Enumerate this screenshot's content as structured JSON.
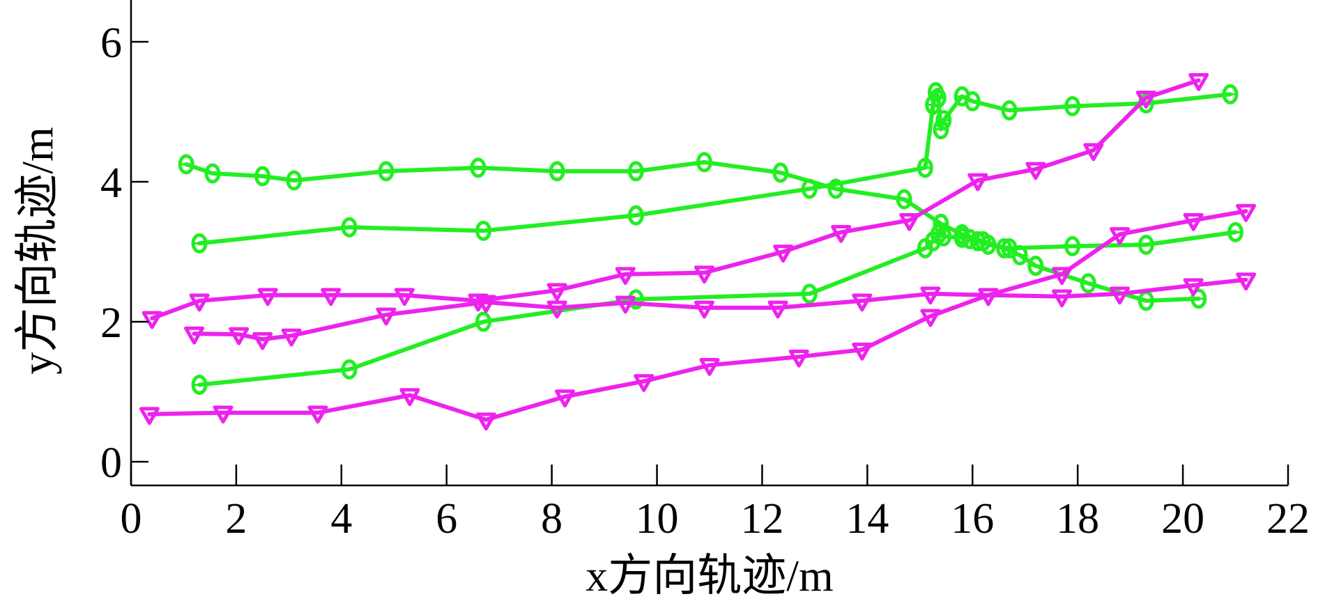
{
  "chart_data": {
    "type": "line",
    "title": "",
    "xlabel": "x方向轨迹/m",
    "ylabel": "y方向轨迹/m",
    "xlim": [
      0,
      22
    ],
    "ylim": [
      -0.3,
      6.6
    ],
    "xticks": [
      0,
      2,
      4,
      6,
      8,
      10,
      12,
      14,
      16,
      18,
      20,
      22
    ],
    "yticks": [
      0,
      2,
      4,
      6
    ],
    "grid": false,
    "colors": {
      "green": "#22ee22",
      "magenta": "#ee22ee"
    },
    "series": [
      {
        "color": "green",
        "marker": "circle",
        "x": [
          1.05,
          1.55,
          2.5,
          3.1,
          4.85,
          6.6,
          8.1,
          9.6,
          10.9,
          12.35,
          13.4,
          14.7,
          15.4,
          15.8,
          16.2,
          16.6,
          16.9,
          17.2,
          18.2,
          19.3,
          20.3
        ],
        "y": [
          4.25,
          4.12,
          4.08,
          4.02,
          4.15,
          4.2,
          4.15,
          4.15,
          4.28,
          4.13,
          3.9,
          3.75,
          3.4,
          3.25,
          3.15,
          3.05,
          2.95,
          2.8,
          2.55,
          2.3,
          2.33
        ]
      },
      {
        "color": "green",
        "marker": "circle",
        "x": [
          1.3,
          4.15,
          6.7,
          9.6,
          12.9,
          15.1,
          15.25,
          15.3,
          15.35,
          15.4,
          15.45,
          15.8,
          16.0,
          16.7,
          17.9,
          19.3,
          20.9
        ],
        "y": [
          3.12,
          3.35,
          3.3,
          3.52,
          3.9,
          4.2,
          5.1,
          5.28,
          5.2,
          4.75,
          4.88,
          5.22,
          5.15,
          5.02,
          5.08,
          5.12,
          5.25
        ]
      },
      {
        "color": "green",
        "marker": "circle",
        "x": [
          1.3,
          4.15,
          6.7,
          9.6,
          12.9,
          15.1,
          15.25,
          15.35,
          15.45,
          15.8,
          15.95,
          16.1,
          16.3,
          16.7,
          17.9,
          19.3,
          21.0
        ],
        "y": [
          1.1,
          1.32,
          2.0,
          2.32,
          2.4,
          3.05,
          3.15,
          3.25,
          3.22,
          3.2,
          3.18,
          3.15,
          3.1,
          3.05,
          3.08,
          3.1,
          3.28
        ]
      },
      {
        "color": "magenta",
        "marker": "triangle-down",
        "x": [
          0.4,
          1.3,
          2.6,
          3.8,
          5.2,
          6.6,
          8.1,
          9.4,
          10.9,
          12.4,
          13.5,
          14.8,
          16.1,
          17.2,
          18.3,
          19.3,
          20.3
        ],
        "y": [
          2.05,
          2.3,
          2.38,
          2.38,
          2.38,
          2.3,
          2.45,
          2.68,
          2.7,
          3.0,
          3.28,
          3.45,
          4.02,
          4.18,
          4.45,
          5.2,
          5.45
        ]
      },
      {
        "color": "magenta",
        "marker": "triangle-down",
        "x": [
          1.2,
          2.05,
          2.5,
          3.05,
          4.85,
          6.75,
          8.1,
          9.4,
          10.9,
          12.3,
          13.9,
          15.2,
          16.3,
          17.7,
          18.8,
          20.2,
          21.2
        ],
        "y": [
          1.83,
          1.82,
          1.75,
          1.8,
          2.1,
          2.28,
          2.2,
          2.27,
          2.2,
          2.2,
          2.3,
          2.4,
          2.38,
          2.36,
          2.4,
          2.52,
          2.6
        ]
      },
      {
        "color": "magenta",
        "marker": "triangle-down",
        "x": [
          0.35,
          1.75,
          3.55,
          5.3,
          6.75,
          8.25,
          9.75,
          11.0,
          12.7,
          13.9,
          15.2,
          16.3,
          17.7,
          18.8,
          20.2,
          21.2
        ],
        "y": [
          0.68,
          0.7,
          0.7,
          0.95,
          0.6,
          0.93,
          1.15,
          1.38,
          1.5,
          1.6,
          2.08,
          2.38,
          2.68,
          3.25,
          3.45,
          3.58
        ]
      }
    ]
  }
}
